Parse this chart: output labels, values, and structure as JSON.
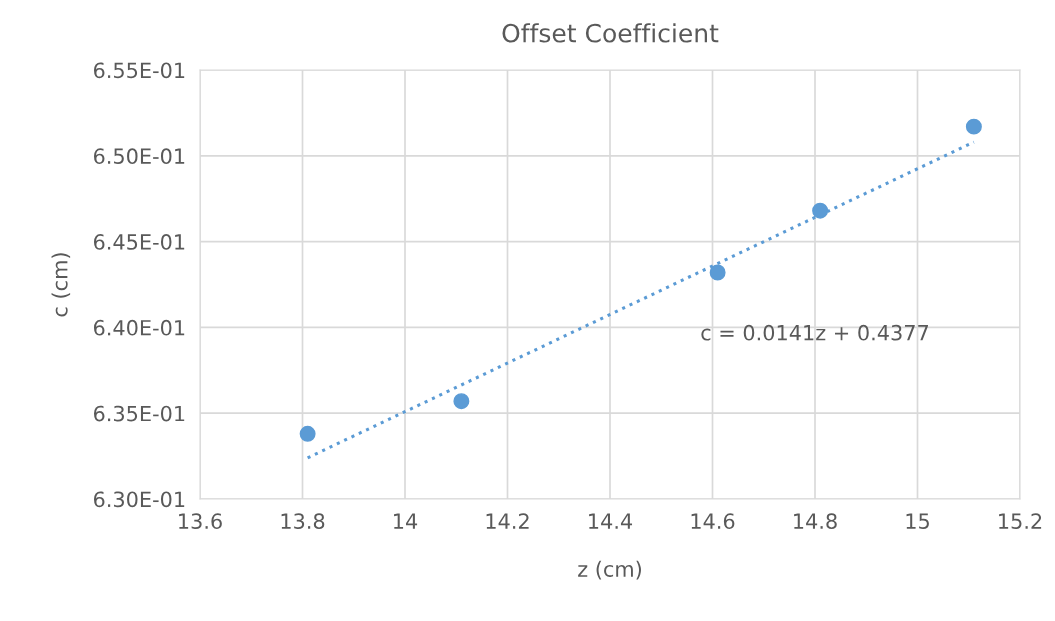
{
  "chart_data": {
    "type": "scatter",
    "title": "Offset Coefficient",
    "xlabel": "z (cm)",
    "ylabel": "c (cm)",
    "series": [
      {
        "color": "#5b9bd5",
        "marker": "circle",
        "x": [
          13.81,
          14.11,
          14.61,
          14.81,
          15.11
        ],
        "values": [
          0.6338,
          0.6357,
          0.6432,
          0.6468,
          0.6517
        ]
      },
      {
        "type": "line",
        "color": "#5b9bd5",
        "line_style": "dotted",
        "marker": "none",
        "x": [
          13.81,
          15.11
        ],
        "values": [
          0.6324,
          0.6508
        ]
      }
    ],
    "annotations": [
      "c = 0.0141z + 0.4377"
    ],
    "xlim": [
      13.6,
      15.2
    ],
    "xticks": [
      13.6,
      13.8,
      14,
      14.2,
      14.4,
      14.6,
      14.8,
      15,
      15.2
    ],
    "ylim": [
      0.63,
      0.655
    ],
    "yticks": [
      {
        "value": 0.63,
        "label": "6.30E-01"
      },
      {
        "value": 0.635,
        "label": "6.35E-01"
      },
      {
        "value": 0.64,
        "label": "6.40E-01"
      },
      {
        "value": 0.645,
        "label": "6.45E-01"
      },
      {
        "value": 0.65,
        "label": "6.50E-01"
      },
      {
        "value": 0.655,
        "label": "6.55E-01"
      }
    ],
    "grid": true,
    "legend": false
  }
}
